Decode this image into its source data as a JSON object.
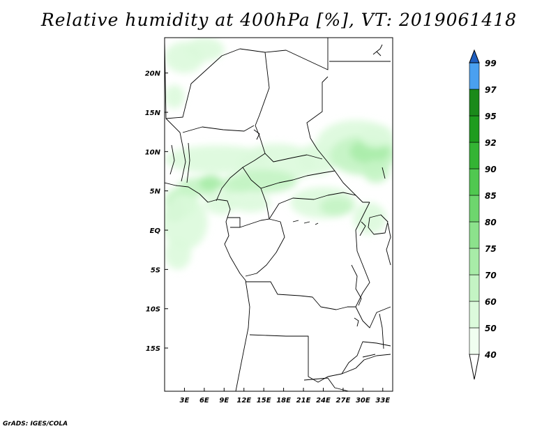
{
  "title": "Relative humidity at 400hPa [%], VT: 2019061418",
  "credit": "GrADS: IGES/COLA",
  "map": {
    "lon_range": [
      0,
      34.5
    ],
    "lat_range": [
      -20.5,
      24.5
    ],
    "lon_ticks": [
      {
        "value": 3,
        "label": "3E"
      },
      {
        "value": 6,
        "label": "6E"
      },
      {
        "value": 9,
        "label": "9E"
      },
      {
        "value": 12,
        "label": "12E"
      },
      {
        "value": 15,
        "label": "15E"
      },
      {
        "value": 18,
        "label": "18E"
      },
      {
        "value": 21,
        "label": "21E"
      },
      {
        "value": 24,
        "label": "24E"
      },
      {
        "value": 27,
        "label": "27E"
      },
      {
        "value": 30,
        "label": "30E"
      },
      {
        "value": 33,
        "label": "33E"
      }
    ],
    "lat_ticks": [
      {
        "value": 20,
        "label": "20N"
      },
      {
        "value": 15,
        "label": "15N"
      },
      {
        "value": 10,
        "label": "10N"
      },
      {
        "value": 5,
        "label": "5N"
      },
      {
        "value": 0,
        "label": "EQ"
      },
      {
        "value": -5,
        "label": "5S"
      },
      {
        "value": -10,
        "label": "10S"
      },
      {
        "value": -15,
        "label": "15S"
      }
    ]
  },
  "colorbar": {
    "levels": [
      "40",
      "50",
      "60",
      "70",
      "75",
      "80",
      "85",
      "90",
      "92",
      "95",
      "97",
      "99"
    ],
    "colors": [
      "#f0fef0",
      "#dcfadc",
      "#c4f4c4",
      "#a8eca8",
      "#8ce28c",
      "#6ed66e",
      "#50c850",
      "#34b434",
      "#1e9c1e",
      "#1a8a1a",
      "#4aa0f0",
      "#2c78e0",
      "#1f5fc0"
    ]
  },
  "humidity_field": [
    {
      "lon": 3,
      "lat": 22,
      "rx": 3,
      "ry": 2,
      "level": 1
    },
    {
      "lon": 6,
      "lat": 23,
      "rx": 3,
      "ry": 1.5,
      "level": 1
    },
    {
      "lon": 1.5,
      "lat": 17,
      "rx": 1.5,
      "ry": 1.5,
      "level": 1
    },
    {
      "lon": 8,
      "lat": 9,
      "rx": 8,
      "ry": 1.8,
      "level": 1
    },
    {
      "lon": 17,
      "lat": 8.5,
      "rx": 6,
      "ry": 2.5,
      "level": 1
    },
    {
      "lon": 23,
      "lat": 9,
      "rx": 3,
      "ry": 2,
      "level": 1
    },
    {
      "lon": 29,
      "lat": 11,
      "rx": 6,
      "ry": 3,
      "level": 1
    },
    {
      "lon": 30,
      "lat": 9.5,
      "rx": 5,
      "ry": 2.5,
      "level": 2
    },
    {
      "lon": 31,
      "lat": 10,
      "rx": 3,
      "ry": 1.5,
      "level": 3
    },
    {
      "lon": 32,
      "lat": 12,
      "rx": 2.5,
      "ry": 1.5,
      "level": 1
    },
    {
      "lon": 32,
      "lat": 7.5,
      "rx": 2,
      "ry": 1.5,
      "level": 2
    },
    {
      "lon": 15,
      "lat": 6.2,
      "rx": 5,
      "ry": 1.5,
      "level": 2
    },
    {
      "lon": 11,
      "lat": 5.8,
      "rx": 2.5,
      "ry": 1.2,
      "level": 2
    },
    {
      "lon": 2.5,
      "lat": 3.5,
      "rx": 2.5,
      "ry": 2,
      "level": 2
    },
    {
      "lon": 1.5,
      "lat": 2.5,
      "rx": 1.5,
      "ry": 1.5,
      "level": 3
    },
    {
      "lon": 3,
      "lat": 1,
      "rx": 3.5,
      "ry": 3.5,
      "level": 1
    },
    {
      "lon": 5,
      "lat": 5.5,
      "rx": 3,
      "ry": 1.2,
      "level": 2
    },
    {
      "lon": 7,
      "lat": 6,
      "rx": 1.8,
      "ry": 1,
      "level": 3
    },
    {
      "lon": 2,
      "lat": -3,
      "rx": 2,
      "ry": 2,
      "level": 1
    },
    {
      "lon": 8.5,
      "lat": 3.5,
      "rx": 2.5,
      "ry": 1.5,
      "level": 1
    },
    {
      "lon": 13,
      "lat": 3.5,
      "rx": 3,
      "ry": 1.2,
      "level": 1
    },
    {
      "lon": 24,
      "lat": 3.5,
      "rx": 5,
      "ry": 2,
      "level": 1
    },
    {
      "lon": 26,
      "lat": 3,
      "rx": 2.5,
      "ry": 1.2,
      "level": 2
    },
    {
      "lon": 31,
      "lat": 1.5,
      "rx": 2.5,
      "ry": 2,
      "level": 1
    }
  ]
}
